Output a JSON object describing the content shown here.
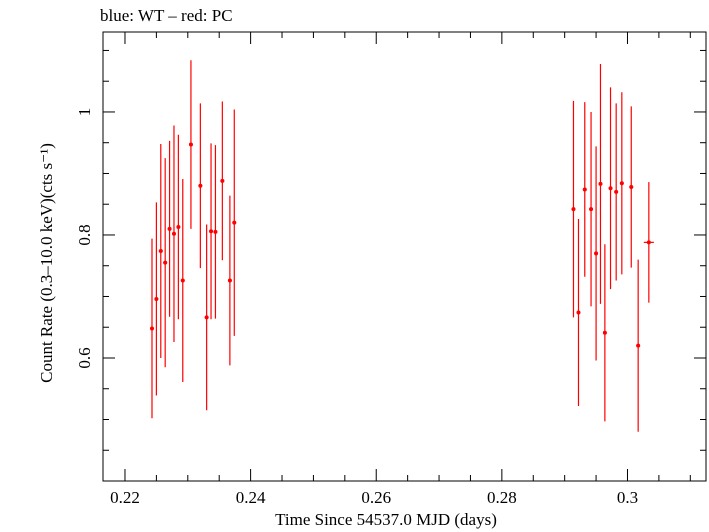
{
  "chart_data": {
    "type": "scatter",
    "title": "blue: WT – red: PC",
    "xlabel": "Time Since 54537.0 MJD (days)",
    "ylabel": "Count Rate (0.3–10.0 keV)(cts s⁻¹)",
    "xlim": [
      0.2165,
      0.3125
    ],
    "ylim": [
      0.4,
      1.13
    ],
    "xticks": [
      0.22,
      0.24,
      0.26,
      0.28,
      0.3
    ],
    "xtick_labels": [
      "0.22",
      "0.24",
      "0.26",
      "0.28",
      "0.3"
    ],
    "yticks": [
      0.6,
      0.8,
      1.0
    ],
    "ytick_labels": [
      "0.6",
      "0.8",
      "1"
    ],
    "grid": false,
    "colors": {
      "PC": "#ff0000",
      "WT": "#0000ff"
    },
    "series": [
      {
        "name": "PC",
        "color": "#ff0000",
        "points": [
          {
            "x": 0.2243,
            "xerr": 0.0003,
            "y": 0.648,
            "yerr": 0.146
          },
          {
            "x": 0.225,
            "xerr": 0.0003,
            "y": 0.696,
            "yerr": 0.157
          },
          {
            "x": 0.2257,
            "xerr": 0.0003,
            "y": 0.774,
            "yerr": 0.174
          },
          {
            "x": 0.2264,
            "xerr": 0.0003,
            "y": 0.755,
            "yerr": 0.17
          },
          {
            "x": 0.2271,
            "xerr": 0.0003,
            "y": 0.81,
            "yerr": 0.143
          },
          {
            "x": 0.2278,
            "xerr": 0.0003,
            "y": 0.802,
            "yerr": 0.176
          },
          {
            "x": 0.2285,
            "xerr": 0.0003,
            "y": 0.813,
            "yerr": 0.15
          },
          {
            "x": 0.2292,
            "xerr": 0.0003,
            "y": 0.726,
            "yerr": 0.165
          },
          {
            "x": 0.2305,
            "xerr": 0.0003,
            "y": 0.947,
            "yerr": 0.137
          },
          {
            "x": 0.232,
            "xerr": 0.0003,
            "y": 0.88,
            "yerr": 0.134
          },
          {
            "x": 0.233,
            "xerr": 0.0003,
            "y": 0.666,
            "yerr": 0.151
          },
          {
            "x": 0.2337,
            "xerr": 0.0003,
            "y": 0.806,
            "yerr": 0.143
          },
          {
            "x": 0.2344,
            "xerr": 0.0003,
            "y": 0.805,
            "yerr": 0.141
          },
          {
            "x": 0.2355,
            "xerr": 0.0003,
            "y": 0.888,
            "yerr": 0.129
          },
          {
            "x": 0.2367,
            "xerr": 0.0003,
            "y": 0.726,
            "yerr": 0.138
          },
          {
            "x": 0.2374,
            "xerr": 0.0003,
            "y": 0.82,
            "yerr": 0.184
          },
          {
            "x": 0.2914,
            "xerr": 0.0003,
            "y": 0.842,
            "yerr": 0.176
          },
          {
            "x": 0.2922,
            "xerr": 0.0003,
            "y": 0.674,
            "yerr": 0.152
          },
          {
            "x": 0.2932,
            "xerr": 0.0003,
            "y": 0.874,
            "yerr": 0.142
          },
          {
            "x": 0.2942,
            "xerr": 0.0003,
            "y": 0.842,
            "yerr": 0.158
          },
          {
            "x": 0.295,
            "xerr": 0.0003,
            "y": 0.77,
            "yerr": 0.174
          },
          {
            "x": 0.2957,
            "xerr": 0.0003,
            "y": 0.883,
            "yerr": 0.195
          },
          {
            "x": 0.2964,
            "xerr": 0.0003,
            "y": 0.641,
            "yerr": 0.144
          },
          {
            "x": 0.2973,
            "xerr": 0.0003,
            "y": 0.876,
            "yerr": 0.164
          },
          {
            "x": 0.2982,
            "xerr": 0.0003,
            "y": 0.87,
            "yerr": 0.144
          },
          {
            "x": 0.2991,
            "xerr": 0.0003,
            "y": 0.884,
            "yerr": 0.148
          },
          {
            "x": 0.3006,
            "xerr": 0.0003,
            "y": 0.878,
            "yerr": 0.131
          },
          {
            "x": 0.3017,
            "xerr": 0.0003,
            "y": 0.62,
            "yerr": 0.14
          },
          {
            "x": 0.3034,
            "xerr": 0.0008,
            "y": 0.788,
            "yerr": 0.098
          }
        ]
      }
    ]
  }
}
